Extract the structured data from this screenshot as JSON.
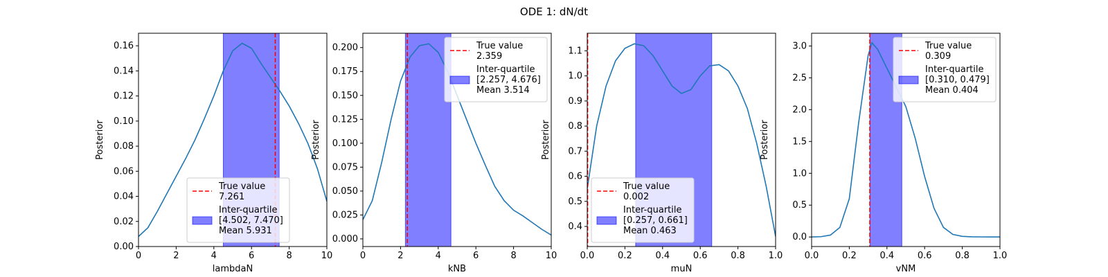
{
  "figure": {
    "title": "ODE 1: dN/dt"
  },
  "colors": {
    "curve": "#1f77b4",
    "true_line": "#ff0000",
    "band_fill": "#0000ff",
    "band_edge": "#0000ff"
  },
  "chart_data": [
    {
      "type": "line",
      "xlabel": "lambdaN",
      "ylabel": "Posterior",
      "xlim": [
        0,
        10
      ],
      "ylim": [
        0,
        0.17
      ],
      "xticks": [
        0,
        2,
        4,
        6,
        8,
        10
      ],
      "xtick_labels": [
        "0",
        "2",
        "4",
        "6",
        "8",
        "10"
      ],
      "yticks": [
        0,
        0.02,
        0.04,
        0.06,
        0.08,
        0.1,
        0.12,
        0.14,
        0.16
      ],
      "ytick_labels": [
        "0.00",
        "0.02",
        "0.04",
        "0.06",
        "0.08",
        "0.10",
        "0.12",
        "0.14",
        "0.16"
      ],
      "x": [
        0,
        0.5,
        1,
        1.5,
        2,
        2.5,
        3,
        3.5,
        4,
        4.5,
        5,
        5.5,
        6,
        6.5,
        7,
        7.5,
        8,
        8.5,
        9,
        9.5,
        10
      ],
      "y": [
        0.008,
        0.015,
        0.028,
        0.042,
        0.056,
        0.07,
        0.085,
        0.102,
        0.12,
        0.14,
        0.156,
        0.162,
        0.158,
        0.146,
        0.135,
        0.124,
        0.112,
        0.098,
        0.082,
        0.062,
        0.036
      ],
      "true_value": 7.261,
      "interquartile": [
        4.502,
        7.47
      ],
      "legend": {
        "position": "lower-center",
        "line_entry": [
          "True value",
          "7.261"
        ],
        "band_entry": [
          "Inter-quartile",
          "[4.502, 7.470]",
          "Mean 5.931"
        ]
      }
    },
    {
      "type": "line",
      "xlabel": "kNB",
      "ylabel": "Posterior",
      "xlim": [
        0,
        10
      ],
      "ylim": [
        -0.008,
        0.215
      ],
      "xticks": [
        0,
        2,
        4,
        6,
        8,
        10
      ],
      "xtick_labels": [
        "0",
        "2",
        "4",
        "6",
        "8",
        "10"
      ],
      "yticks": [
        0,
        0.025,
        0.05,
        0.075,
        0.1,
        0.125,
        0.15,
        0.175,
        0.2
      ],
      "ytick_labels": [
        "0.000",
        "0.025",
        "0.050",
        "0.075",
        "0.100",
        "0.125",
        "0.150",
        "0.175",
        "0.200"
      ],
      "x": [
        0,
        0.5,
        1,
        1.5,
        2,
        2.5,
        3,
        3.5,
        4,
        4.5,
        5,
        5.5,
        6,
        6.5,
        7,
        7.5,
        8,
        8.5,
        9,
        9.5,
        10
      ],
      "y": [
        0.02,
        0.04,
        0.08,
        0.125,
        0.165,
        0.19,
        0.202,
        0.204,
        0.195,
        0.175,
        0.15,
        0.125,
        0.1,
        0.077,
        0.055,
        0.04,
        0.03,
        0.024,
        0.017,
        0.01,
        0.004
      ],
      "true_value": 2.359,
      "interquartile": [
        2.257,
        4.676
      ],
      "legend": {
        "position": "upper-right",
        "line_entry": [
          "True value",
          "2.359"
        ],
        "band_entry": [
          "Inter-quartile",
          "[2.257, 4.676]",
          "Mean 3.514"
        ]
      }
    },
    {
      "type": "line",
      "xlabel": "muN",
      "ylabel": "Posterior",
      "xlim": [
        0,
        1
      ],
      "ylim": [
        0.32,
        1.17
      ],
      "xticks": [
        0,
        0.2,
        0.4,
        0.6,
        0.8,
        1
      ],
      "xtick_labels": [
        "0.0",
        "0.2",
        "0.4",
        "0.6",
        "0.8",
        "1.0"
      ],
      "yticks": [
        0.4,
        0.5,
        0.6,
        0.7,
        0.8,
        0.9,
        1.0,
        1.1
      ],
      "ytick_labels": [
        "0.4",
        "0.5",
        "0.6",
        "0.7",
        "0.8",
        "0.9",
        "1.0",
        "1.1"
      ],
      "x": [
        0,
        0.05,
        0.1,
        0.15,
        0.2,
        0.25,
        0.3,
        0.35,
        0.4,
        0.45,
        0.5,
        0.55,
        0.6,
        0.65,
        0.7,
        0.75,
        0.8,
        0.85,
        0.9,
        0.95,
        1
      ],
      "y": [
        0.55,
        0.8,
        0.96,
        1.06,
        1.11,
        1.128,
        1.12,
        1.08,
        1.02,
        0.96,
        0.93,
        0.945,
        1.0,
        1.04,
        1.045,
        1.02,
        0.96,
        0.87,
        0.73,
        0.56,
        0.36
      ],
      "true_value": 0.002,
      "interquartile": [
        0.257,
        0.661
      ],
      "legend": {
        "position": "lower-left",
        "line_entry": [
          "True value",
          "0.002"
        ],
        "band_entry": [
          "Inter-quartile",
          "[0.257, 0.661]",
          "Mean 0.463"
        ]
      }
    },
    {
      "type": "line",
      "xlabel": "vNM",
      "ylabel": "Posterior",
      "xlim": [
        0,
        1
      ],
      "ylim": [
        -0.15,
        3.2
      ],
      "xticks": [
        0,
        0.2,
        0.4,
        0.6,
        0.8,
        1
      ],
      "xtick_labels": [
        "0.0",
        "0.2",
        "0.4",
        "0.6",
        "0.8",
        "1.0"
      ],
      "yticks": [
        0,
        0.5,
        1.0,
        1.5,
        2.0,
        2.5,
        3.0
      ],
      "ytick_labels": [
        "0.0",
        "0.5",
        "1.0",
        "1.5",
        "2.0",
        "2.5",
        "3.0"
      ],
      "x": [
        0,
        0.05,
        0.1,
        0.15,
        0.2,
        0.25,
        0.3,
        0.32,
        0.35,
        0.4,
        0.45,
        0.5,
        0.55,
        0.6,
        0.65,
        0.7,
        0.75,
        0.8,
        0.85,
        0.9,
        0.95,
        1
      ],
      "y": [
        0,
        0.005,
        0.03,
        0.15,
        0.6,
        1.8,
        2.85,
        3.05,
        2.95,
        2.65,
        2.35,
        2.05,
        1.55,
        0.95,
        0.45,
        0.15,
        0.04,
        0.01,
        0.003,
        0.001,
        0.0,
        0.0
      ],
      "true_value": 0.309,
      "interquartile": [
        0.31,
        0.479
      ],
      "legend": {
        "position": "upper-right",
        "line_entry": [
          "True value",
          "0.309"
        ],
        "band_entry": [
          "Inter-quartile",
          "[0.310, 0.479]",
          "Mean 0.404"
        ]
      }
    }
  ]
}
